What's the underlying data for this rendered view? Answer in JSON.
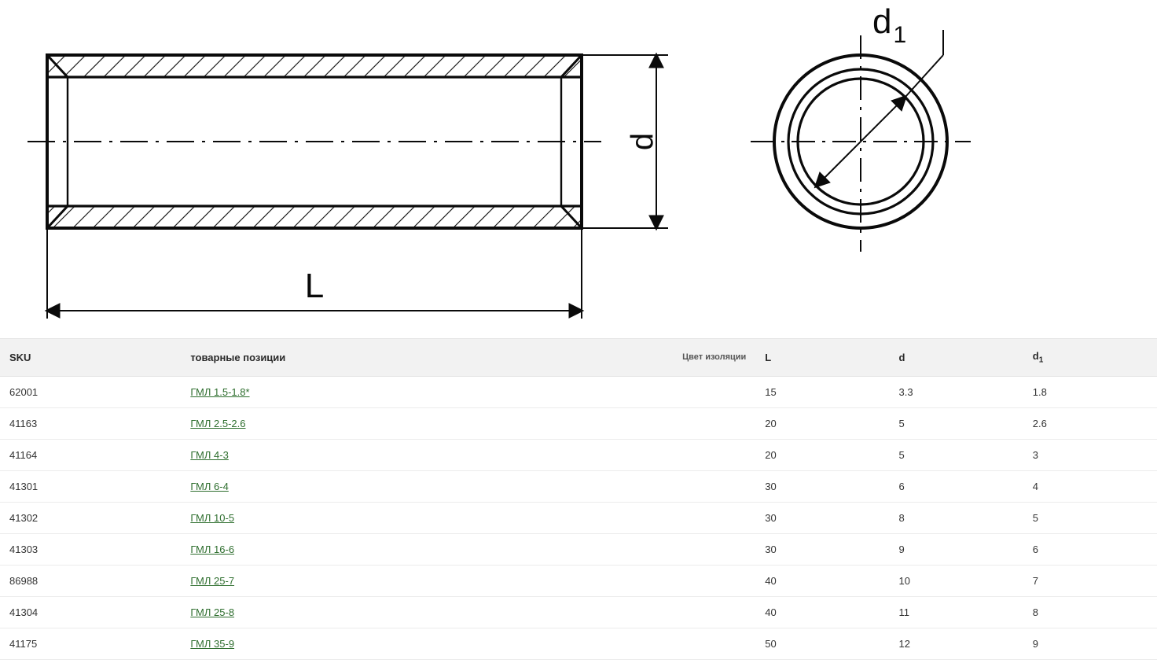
{
  "diagram": {
    "labels": {
      "L": "L",
      "d": "d",
      "d1": "d",
      "d1_sub": "1"
    },
    "stroke": "#0a0a0a",
    "stroke_width_main": 4,
    "stroke_width_thin": 2
  },
  "table": {
    "columns": [
      {
        "key": "sku",
        "label": "SKU"
      },
      {
        "key": "item",
        "label": "товарные позиции",
        "right_label": "Цвет изоляции"
      },
      {
        "key": "L",
        "label": "L"
      },
      {
        "key": "d",
        "label": "d"
      },
      {
        "key": "d1",
        "label": "d",
        "sub": "1"
      }
    ],
    "rows": [
      {
        "sku": "62001",
        "item": "ГМЛ 1.5-1.8*",
        "L": "15",
        "d": "3.3",
        "d1": "1.8"
      },
      {
        "sku": "41163",
        "item": "ГМЛ 2.5-2.6",
        "L": "20",
        "d": "5",
        "d1": "2.6"
      },
      {
        "sku": "41164",
        "item": "ГМЛ 4-3",
        "L": "20",
        "d": "5",
        "d1": "3"
      },
      {
        "sku": "41301",
        "item": "ГМЛ 6-4",
        "L": "30",
        "d": "6",
        "d1": "4"
      },
      {
        "sku": "41302",
        "item": "ГМЛ 10-5",
        "L": "30",
        "d": "8",
        "d1": "5"
      },
      {
        "sku": "41303",
        "item": "ГМЛ 16-6",
        "L": "30",
        "d": "9",
        "d1": "6"
      },
      {
        "sku": "86988",
        "item": "ГМЛ 25-7",
        "L": "40",
        "d": "10",
        "d1": "7"
      },
      {
        "sku": "41304",
        "item": "ГМЛ 25-8",
        "L": "40",
        "d": "11",
        "d1": "8"
      },
      {
        "sku": "41175",
        "item": "ГМЛ 35-9",
        "L": "50",
        "d": "12",
        "d1": "9"
      }
    ],
    "link_color": "#2e6e2e",
    "header_bg": "#f2f2f2",
    "border_color": "#ececec"
  }
}
